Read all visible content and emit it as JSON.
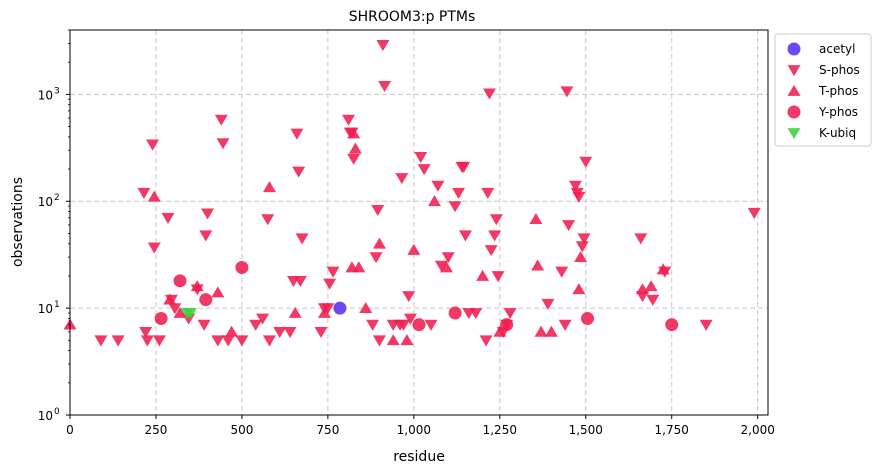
{
  "chart_data": {
    "type": "scatter",
    "title": "SHROOM3:p PTMs",
    "xlabel": "residue",
    "ylabel": "observations",
    "xlim": [
      0,
      2030
    ],
    "ylim": [
      1,
      4000
    ],
    "yscale": "log",
    "grid": true,
    "legend_position": "upper-right-outside",
    "x_ticks": [
      {
        "value": 0,
        "label": "0"
      },
      {
        "value": 250,
        "label": "250"
      },
      {
        "value": 500,
        "label": "500"
      },
      {
        "value": 750,
        "label": "750"
      },
      {
        "value": 1000,
        "label": "1,000"
      },
      {
        "value": 1250,
        "label": "1,250"
      },
      {
        "value": 1500,
        "label": "1,500"
      },
      {
        "value": 1750,
        "label": "1,750"
      },
      {
        "value": 2000,
        "label": "2,000"
      }
    ],
    "y_ticks": [
      {
        "value": 1,
        "label": "10",
        "exp": "0"
      },
      {
        "value": 10,
        "label": "10",
        "exp": "1"
      },
      {
        "value": 100,
        "label": "10",
        "exp": "2"
      },
      {
        "value": 1000,
        "label": "10",
        "exp": "3"
      }
    ],
    "series": [
      {
        "name": "acetyl",
        "marker": "circle",
        "color": "#5b2ef0",
        "points": [
          [
            785,
            10
          ]
        ]
      },
      {
        "name": "S-phos",
        "marker": "triangle-down",
        "color": "#f01e50",
        "points": [
          [
            90,
            5
          ],
          [
            140,
            5
          ],
          [
            215,
            120
          ],
          [
            220,
            6
          ],
          [
            225,
            5
          ],
          [
            240,
            340
          ],
          [
            245,
            37
          ],
          [
            260,
            5
          ],
          [
            285,
            70
          ],
          [
            295,
            12
          ],
          [
            305,
            10
          ],
          [
            345,
            8
          ],
          [
            370,
            15
          ],
          [
            390,
            7
          ],
          [
            395,
            48
          ],
          [
            400,
            77
          ],
          [
            430,
            5
          ],
          [
            440,
            580
          ],
          [
            445,
            350
          ],
          [
            460,
            5
          ],
          [
            500,
            5
          ],
          [
            540,
            7
          ],
          [
            560,
            8
          ],
          [
            575,
            68
          ],
          [
            580,
            5
          ],
          [
            610,
            6
          ],
          [
            640,
            6
          ],
          [
            650,
            18
          ],
          [
            660,
            430
          ],
          [
            665,
            190
          ],
          [
            670,
            18
          ],
          [
            675,
            45
          ],
          [
            730,
            6
          ],
          [
            740,
            10
          ],
          [
            750,
            10
          ],
          [
            755,
            17
          ],
          [
            765,
            22
          ],
          [
            810,
            580
          ],
          [
            815,
            440
          ],
          [
            820,
            440
          ],
          [
            825,
            250
          ],
          [
            880,
            7
          ],
          [
            890,
            30
          ],
          [
            895,
            83
          ],
          [
            900,
            5
          ],
          [
            910,
            2900
          ],
          [
            915,
            1200
          ],
          [
            940,
            7
          ],
          [
            960,
            7
          ],
          [
            965,
            165
          ],
          [
            970,
            7
          ],
          [
            985,
            13
          ],
          [
            990,
            8
          ],
          [
            1020,
            260
          ],
          [
            1030,
            200
          ],
          [
            1050,
            7
          ],
          [
            1070,
            140
          ],
          [
            1080,
            25
          ],
          [
            1100,
            30
          ],
          [
            1120,
            90
          ],
          [
            1130,
            120
          ],
          [
            1140,
            210
          ],
          [
            1145,
            210
          ],
          [
            1150,
            48
          ],
          [
            1160,
            9
          ],
          [
            1180,
            9
          ],
          [
            1210,
            5
          ],
          [
            1215,
            120
          ],
          [
            1220,
            1020
          ],
          [
            1225,
            35
          ],
          [
            1235,
            48
          ],
          [
            1240,
            68
          ],
          [
            1245,
            20
          ],
          [
            1260,
            6
          ],
          [
            1270,
            7
          ],
          [
            1280,
            9
          ],
          [
            1390,
            11
          ],
          [
            1430,
            22
          ],
          [
            1440,
            7
          ],
          [
            1445,
            1070
          ],
          [
            1450,
            60
          ],
          [
            1470,
            140
          ],
          [
            1475,
            120
          ],
          [
            1480,
            110
          ],
          [
            1490,
            38
          ],
          [
            1495,
            45
          ],
          [
            1500,
            235
          ],
          [
            1660,
            45
          ],
          [
            1665,
            13
          ],
          [
            1695,
            12
          ],
          [
            1730,
            22
          ],
          [
            1850,
            7
          ],
          [
            1990,
            78
          ]
        ]
      },
      {
        "name": "T-phos",
        "marker": "triangle-up",
        "color": "#f01e50",
        "points": [
          [
            0,
            7
          ],
          [
            245,
            110
          ],
          [
            290,
            12
          ],
          [
            320,
            9
          ],
          [
            370,
            16
          ],
          [
            430,
            14
          ],
          [
            470,
            6
          ],
          [
            580,
            135
          ],
          [
            655,
            9
          ],
          [
            740,
            9
          ],
          [
            820,
            24
          ],
          [
            825,
            430
          ],
          [
            830,
            310
          ],
          [
            840,
            24
          ],
          [
            860,
            10
          ],
          [
            900,
            40
          ],
          [
            940,
            5
          ],
          [
            980,
            5
          ],
          [
            1000,
            35
          ],
          [
            1060,
            100
          ],
          [
            1095,
            24
          ],
          [
            1200,
            20
          ],
          [
            1250,
            6
          ],
          [
            1355,
            68
          ],
          [
            1360,
            25
          ],
          [
            1370,
            6
          ],
          [
            1400,
            6
          ],
          [
            1480,
            15
          ],
          [
            1485,
            30
          ],
          [
            1665,
            15
          ],
          [
            1690,
            16
          ],
          [
            1725,
            23
          ]
        ]
      },
      {
        "name": "Y-phos",
        "marker": "circle",
        "color": "#f01e50",
        "points": [
          [
            265,
            8
          ],
          [
            320,
            18
          ],
          [
            395,
            12
          ],
          [
            500,
            24
          ],
          [
            1015,
            7
          ],
          [
            1120,
            9
          ],
          [
            1270,
            7
          ],
          [
            1505,
            8
          ],
          [
            1750,
            7
          ]
        ]
      },
      {
        "name": "K-ubiq",
        "marker": "triangle-down",
        "color": "#3cd23c",
        "points": [
          [
            340,
            9
          ],
          [
            350,
            9
          ]
        ]
      }
    ]
  }
}
